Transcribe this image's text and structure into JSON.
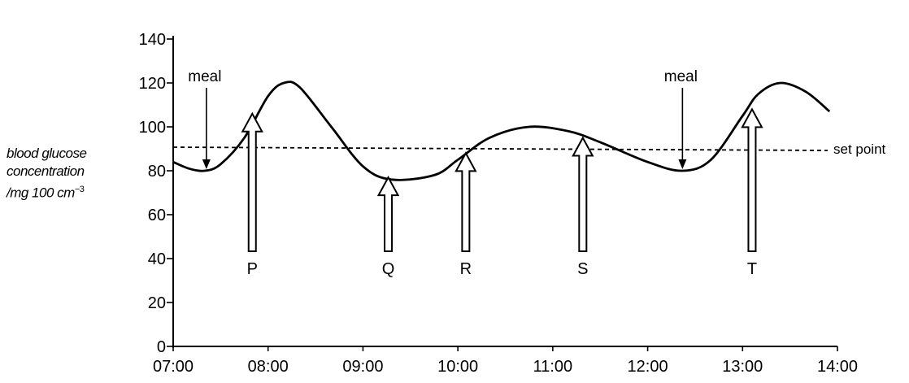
{
  "chart_data": {
    "type": "line",
    "title": "",
    "xlabel": "",
    "ylabel_lines": [
      "blood glucose",
      "concentration",
      "/mg 100 cm"
    ],
    "ylabel_exponent": "−3",
    "ylim": [
      0,
      140
    ],
    "yticks": [
      0,
      20,
      40,
      60,
      80,
      100,
      120,
      140
    ],
    "x_tick_labels": [
      "07:00",
      "08:00",
      "09:00",
      "10:00",
      "11:00",
      "12:00",
      "13:00",
      "14:00"
    ],
    "xlim_hours": [
      7,
      14
    ],
    "series": [
      {
        "x": [
          "07:00",
          "07:10",
          "07:20",
          "07:30",
          "07:45",
          "08:00",
          "08:10",
          "08:20",
          "08:40",
          "09:00",
          "09:18",
          "09:45",
          "10:00",
          "10:20",
          "10:45",
          "11:10",
          "11:30",
          "12:00",
          "12:22",
          "12:40",
          "13:00",
          "13:10",
          "13:24",
          "13:40",
          "13:55"
        ],
        "values": [
          84,
          81,
          80,
          83,
          95,
          114,
          120,
          118,
          100,
          82,
          76,
          78,
          85,
          95,
          100,
          98,
          93,
          84,
          80,
          85,
          105,
          115,
          120,
          116,
          107
        ]
      }
    ],
    "reference_line": {
      "label": "set point",
      "value": 90,
      "style": "dashed"
    },
    "meal_annotations": [
      {
        "label": "meal",
        "time": "07:21",
        "value": 80
      },
      {
        "label": "meal",
        "time": "12:22",
        "value": 80
      }
    ],
    "markers": [
      {
        "label": "P",
        "time": "07:50",
        "tip_value": 106
      },
      {
        "label": "Q",
        "time": "09:16",
        "tip_value": 77
      },
      {
        "label": "R",
        "time": "10:05",
        "tip_value": 88
      },
      {
        "label": "S",
        "time": "11:19",
        "tip_value": 95
      },
      {
        "label": "T",
        "time": "13:06",
        "tip_value": 108
      }
    ]
  }
}
